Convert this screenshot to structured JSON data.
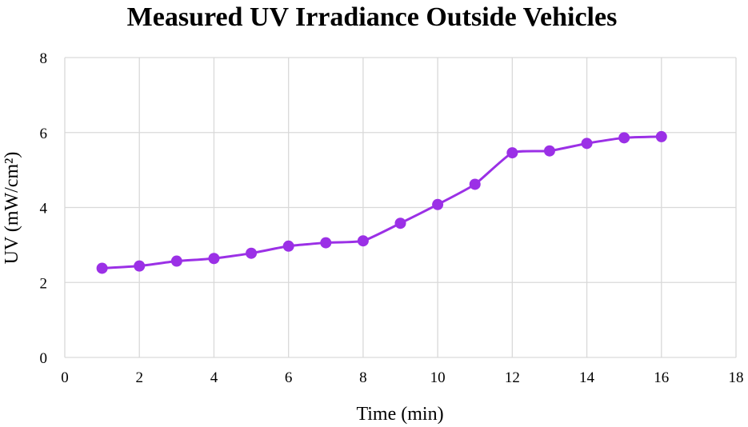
{
  "chart_data": {
    "type": "scatter",
    "title": "Measured UV Irradiance Outside Vehicles",
    "xlabel": "Time (min)",
    "ylabel": "UV (mW/cm²)",
    "xlim": [
      0,
      18
    ],
    "ylim": [
      0,
      8
    ],
    "xticks": [
      "0",
      "2",
      "4",
      "6",
      "8",
      "10",
      "12",
      "14",
      "16",
      "18"
    ],
    "yticks": [
      "0",
      "2",
      "4",
      "6",
      "8"
    ],
    "grid": true,
    "smooth_line": true,
    "series": [
      {
        "color": "#9b30e6",
        "x": [
          1,
          2,
          3,
          4,
          5,
          6,
          7,
          8,
          9,
          10,
          11,
          12,
          13,
          14,
          15,
          16
        ],
        "y": [
          2.38,
          2.44,
          2.57,
          2.64,
          2.78,
          2.97,
          3.06,
          3.11,
          3.58,
          4.08,
          4.62,
          5.46,
          5.51,
          5.71,
          5.86,
          5.89
        ]
      }
    ]
  }
}
